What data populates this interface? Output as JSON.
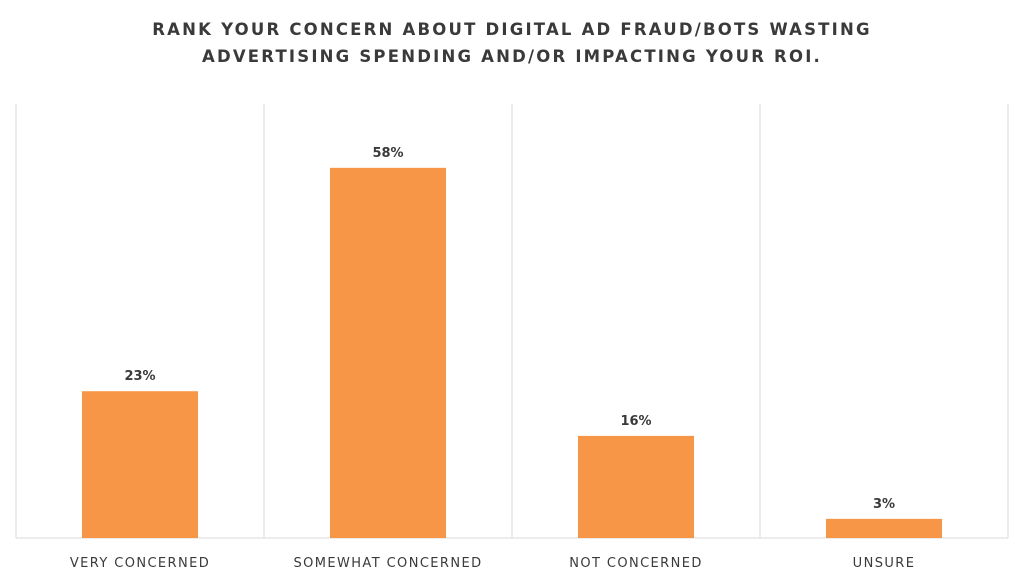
{
  "chart_data": {
    "type": "bar",
    "title_lines": [
      "RANK YOUR CONCERN ABOUT DIGITAL AD FRAUD/BOTS WASTING",
      "ADVERTISING SPENDING AND/OR IMPACTING YOUR ROI."
    ],
    "categories": [
      "VERY CONCERNED",
      "SOMEWHAT CONCERNED",
      "NOT CONCERNED",
      "UNSURE"
    ],
    "values": [
      23,
      58,
      16,
      3
    ],
    "data_labels": [
      "23%",
      "58%",
      "16%",
      "3%"
    ],
    "ylim": [
      0,
      68
    ],
    "bar_color": "#f79646",
    "grid_color": "#d9d9d9",
    "text_color": "#3a3a3a",
    "grid": true,
    "legend": "none"
  }
}
